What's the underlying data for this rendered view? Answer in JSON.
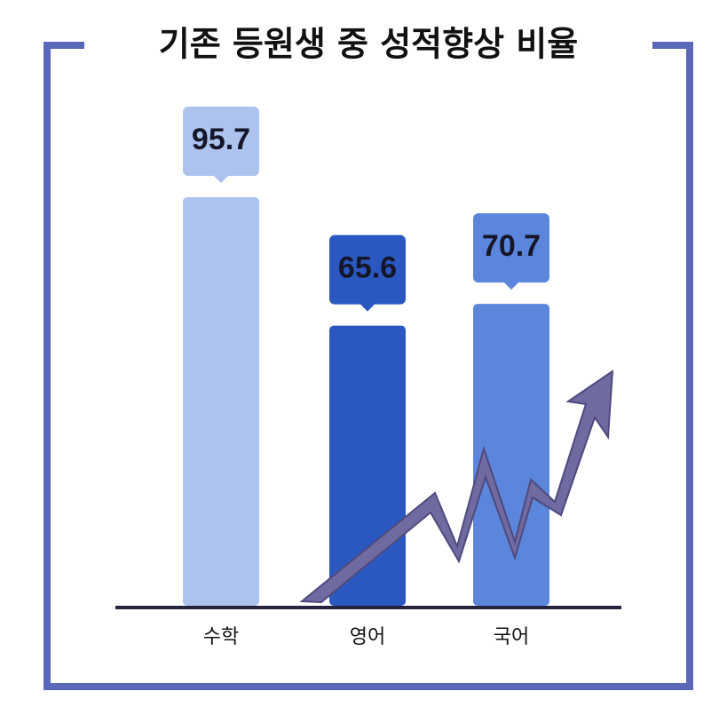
{
  "chart_data": {
    "type": "bar",
    "title": "기존 등원생 중 성적향상 비율",
    "categories": [
      "수학",
      "영어",
      "국어"
    ],
    "values": [
      95.7,
      65.6,
      70.7
    ],
    "colors": [
      "#adc3ee",
      "#2a58c0",
      "#5b86dc"
    ]
  }
}
